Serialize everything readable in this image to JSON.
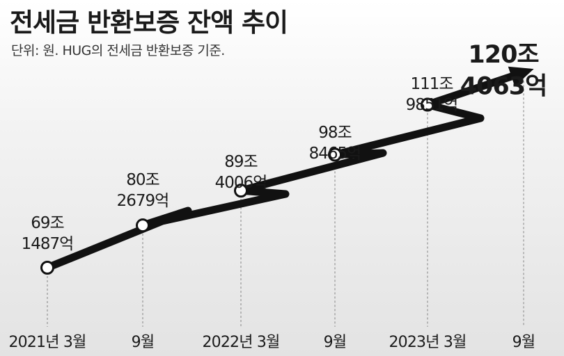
{
  "chart_data": {
    "type": "line",
    "title": "전세금 반환보증 잔액 추이",
    "subtitle": "단위: 원. HUG의 전세금 반환보증 기준.",
    "x": [
      "2021년 3월",
      "9월",
      "2022년 3월",
      "9월",
      "2023년 3월",
      "9월"
    ],
    "series": [
      {
        "values": [
          691487,
          802679,
          894006,
          988465,
          1119851,
          1204063
        ],
        "labels": [
          [
            "69조",
            "1487억"
          ],
          [
            "80조",
            "2679억"
          ],
          [
            "89조",
            "4006억"
          ],
          [
            "98조",
            "8465억"
          ],
          [
            "111조",
            "9851억"
          ],
          [
            "120조",
            "4063억"
          ]
        ]
      }
    ],
    "grid": false,
    "legend": "none"
  },
  "colors": {
    "line": "#111111",
    "marker_fill": "#ffffff",
    "guide": "#9a9a9a"
  }
}
